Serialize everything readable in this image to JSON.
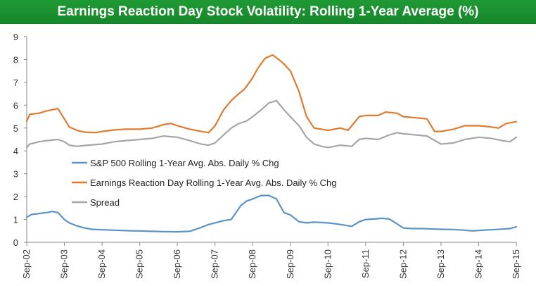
{
  "chart_data": {
    "type": "line",
    "title": "Earnings Reaction Day Stock Volatility: Rolling 1-Year Average (%)",
    "xlabel": "",
    "ylabel": "",
    "ylim": [
      0,
      9
    ],
    "yticks": [
      "0",
      "1",
      "2",
      "3",
      "4",
      "5",
      "6",
      "7",
      "8",
      "9"
    ],
    "x_tick_labels": [
      "Sep-02",
      "Sep-03",
      "Sep-04",
      "Sep-05",
      "Sep-06",
      "Sep-07",
      "Sep-08",
      "Sep-09",
      "Sep-10",
      "Sep-11",
      "Sep-12",
      "Sep-13",
      "Sep-14",
      "Sep-15"
    ],
    "x_range": [
      2002.67,
      2015.67
    ],
    "grid": false,
    "legend_position": "center-left",
    "series": [
      {
        "name": "S&P 500 Rolling 1-Year Avg. Abs. Daily % Chg",
        "color": "#5b93c6",
        "x": [
          2002.67,
          2002.8,
          2003.0,
          2003.2,
          2003.35,
          2003.5,
          2003.67,
          2003.8,
          2004.0,
          2004.2,
          2004.4,
          2004.67,
          2005.0,
          2005.2,
          2005.5,
          2005.67,
          2006.0,
          2006.3,
          2006.67,
          2007.0,
          2007.3,
          2007.5,
          2007.67,
          2007.9,
          2008.1,
          2008.35,
          2008.5,
          2008.67,
          2008.9,
          2009.1,
          2009.3,
          2009.5,
          2009.67,
          2009.9,
          2010.1,
          2010.3,
          2010.67,
          2011.0,
          2011.3,
          2011.5,
          2011.67,
          2011.9,
          2012.1,
          2012.3,
          2012.67,
          2012.9,
          2013.2,
          2013.5,
          2013.67,
          2014.0,
          2014.3,
          2014.5,
          2014.67,
          2015.0,
          2015.3,
          2015.5,
          2015.67
        ],
        "values": [
          1.1,
          1.22,
          1.26,
          1.3,
          1.35,
          1.3,
          1.0,
          0.85,
          0.72,
          0.63,
          0.57,
          0.55,
          0.53,
          0.52,
          0.5,
          0.5,
          0.48,
          0.47,
          0.46,
          0.48,
          0.65,
          0.78,
          0.85,
          0.95,
          1.0,
          1.6,
          1.8,
          1.9,
          2.05,
          2.05,
          1.9,
          1.3,
          1.2,
          0.9,
          0.85,
          0.88,
          0.85,
          0.78,
          0.7,
          0.9,
          1.0,
          1.02,
          1.05,
          1.02,
          0.63,
          0.6,
          0.6,
          0.58,
          0.57,
          0.56,
          0.53,
          0.5,
          0.52,
          0.55,
          0.58,
          0.6,
          0.68
        ]
      },
      {
        "name": "Earnings Reaction Day Rolling 1-Year Avg. Abs. Daily % Chg",
        "color": "#e07b2e",
        "x": [
          2002.67,
          2002.75,
          2003.0,
          2003.2,
          2003.35,
          2003.5,
          2003.67,
          2003.8,
          2004.0,
          2004.2,
          2004.5,
          2004.67,
          2005.0,
          2005.3,
          2005.67,
          2006.0,
          2006.3,
          2006.5,
          2006.67,
          2007.0,
          2007.3,
          2007.5,
          2007.67,
          2007.9,
          2008.1,
          2008.3,
          2008.45,
          2008.67,
          2008.8,
          2009.0,
          2009.2,
          2009.4,
          2009.5,
          2009.67,
          2009.9,
          2010.1,
          2010.3,
          2010.5,
          2010.67,
          2011.0,
          2011.2,
          2011.5,
          2011.67,
          2012.0,
          2012.2,
          2012.5,
          2012.67,
          2013.0,
          2013.3,
          2013.5,
          2013.67,
          2014.0,
          2014.3,
          2014.67,
          2015.0,
          2015.2,
          2015.4,
          2015.67
        ],
        "values": [
          5.3,
          5.6,
          5.65,
          5.75,
          5.8,
          5.85,
          5.4,
          5.05,
          4.9,
          4.82,
          4.8,
          4.85,
          4.92,
          4.95,
          4.95,
          5.0,
          5.15,
          5.2,
          5.1,
          4.95,
          4.85,
          4.8,
          5.1,
          5.8,
          6.2,
          6.5,
          6.7,
          7.2,
          7.6,
          8.05,
          8.2,
          7.95,
          7.8,
          7.5,
          6.6,
          5.5,
          5.0,
          4.95,
          4.9,
          5.0,
          4.9,
          5.5,
          5.55,
          5.55,
          5.7,
          5.65,
          5.5,
          5.45,
          5.4,
          4.85,
          4.85,
          4.95,
          5.1,
          5.1,
          5.05,
          5.0,
          5.2,
          5.28
        ]
      },
      {
        "name": "Spread",
        "color": "#a6a6a6",
        "x": [
          2002.67,
          2002.75,
          2003.0,
          2003.2,
          2003.5,
          2003.67,
          2003.8,
          2004.0,
          2004.3,
          2004.67,
          2005.0,
          2005.3,
          2005.67,
          2006.0,
          2006.3,
          2006.67,
          2007.0,
          2007.3,
          2007.5,
          2007.67,
          2007.9,
          2008.1,
          2008.3,
          2008.5,
          2008.67,
          2008.9,
          2009.1,
          2009.3,
          2009.5,
          2009.67,
          2009.9,
          2010.1,
          2010.3,
          2010.5,
          2010.67,
          2011.0,
          2011.3,
          2011.5,
          2011.67,
          2012.0,
          2012.3,
          2012.5,
          2012.67,
          2013.0,
          2013.3,
          2013.67,
          2014.0,
          2014.3,
          2014.67,
          2015.0,
          2015.3,
          2015.5,
          2015.67
        ],
        "values": [
          4.15,
          4.3,
          4.4,
          4.45,
          4.5,
          4.4,
          4.25,
          4.2,
          4.25,
          4.3,
          4.4,
          4.45,
          4.5,
          4.55,
          4.65,
          4.6,
          4.45,
          4.3,
          4.25,
          4.35,
          4.7,
          5.0,
          5.2,
          5.3,
          5.5,
          5.8,
          6.1,
          6.2,
          5.8,
          5.5,
          5.1,
          4.6,
          4.3,
          4.2,
          4.15,
          4.25,
          4.2,
          4.5,
          4.55,
          4.5,
          4.7,
          4.8,
          4.75,
          4.7,
          4.65,
          4.3,
          4.35,
          4.5,
          4.6,
          4.55,
          4.45,
          4.4,
          4.6
        ]
      }
    ]
  }
}
